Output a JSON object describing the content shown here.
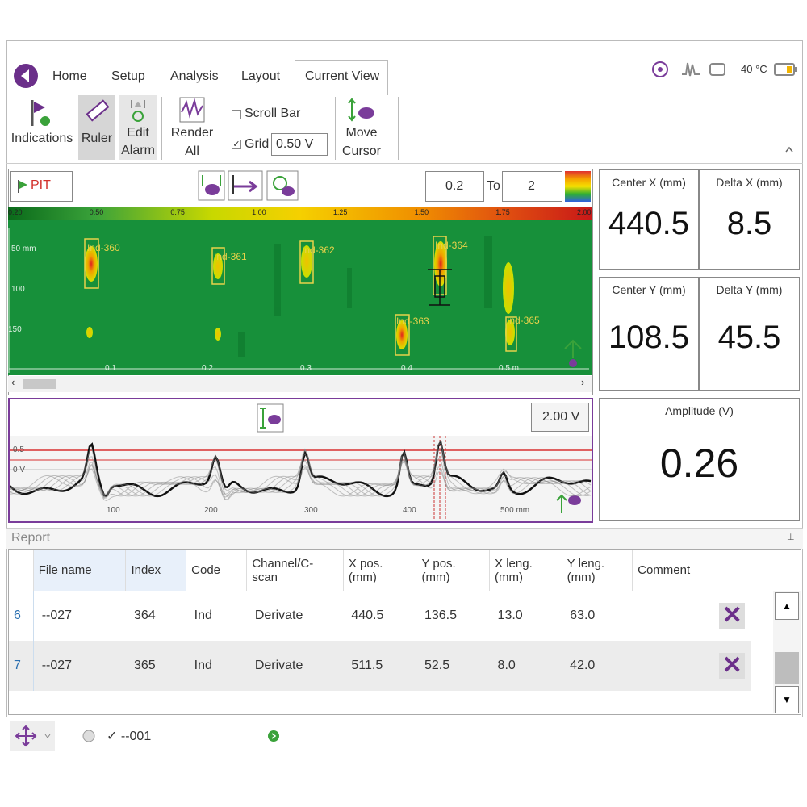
{
  "tabs": [
    "Home",
    "Setup",
    "Analysis",
    "Layout",
    "Current View"
  ],
  "status": {
    "temperature": "40 °C"
  },
  "ribbon": {
    "indications": "Indications",
    "ruler": "Ruler",
    "edit_alarm": [
      "Edit",
      "Alarm"
    ],
    "render_all": [
      "Render",
      "All"
    ],
    "scroll_bar": "Scroll Bar",
    "grid": "Grid",
    "grid_value": "0.50 V",
    "move_cursor": [
      "Move",
      "Cursor"
    ]
  },
  "cscan": {
    "layer": "PIT",
    "range_from": "0.2",
    "range_to_label": "To",
    "range_to": "2",
    "color_scale": [
      "0.20",
      "0.50",
      "0.75",
      "1.00",
      "1.25",
      "1.50",
      "1.75",
      "2.00"
    ],
    "y_labels": [
      "50 mm",
      "100",
      "150"
    ],
    "x_labels": [
      "0.1",
      "0.2",
      "0.3",
      "0.4",
      "0.5 m"
    ],
    "indications": [
      "Ind-360",
      "Ind-361",
      "Ind-362",
      "Ind-363",
      "Ind-364",
      "Ind-365"
    ]
  },
  "readouts": [
    {
      "label": "Center X (mm)",
      "value": "440.5"
    },
    {
      "label": "Delta X (mm)",
      "value": "8.5"
    },
    {
      "label": "Center Y (mm)",
      "value": "108.5"
    },
    {
      "label": "Delta Y (mm)",
      "value": "45.5"
    },
    {
      "label": "Amplitude (V)",
      "value": "0.26"
    }
  ],
  "ascan": {
    "scale": "2.00 V",
    "y_labels": [
      "0.5",
      "0 V"
    ],
    "x_labels": [
      "100",
      "200",
      "300",
      "400",
      "500 mm"
    ]
  },
  "report": {
    "title": "Report",
    "columns": [
      "File name",
      "Index",
      "Code",
      "Channel/C-scan",
      "X pos. (mm)",
      "Y pos. (mm)",
      "X leng. (mm)",
      "Y leng. (mm)",
      "Comment"
    ],
    "rows": [
      [
        "6",
        "--027",
        "364",
        "Ind",
        "Derivate",
        "440.5",
        "136.5",
        "13.0",
        "63.0"
      ],
      [
        "7",
        "--027",
        "365",
        "Ind",
        "Derivate",
        "511.5",
        "52.5",
        "8.0",
        "42.0"
      ]
    ]
  },
  "footer": {
    "file": "--001"
  }
}
